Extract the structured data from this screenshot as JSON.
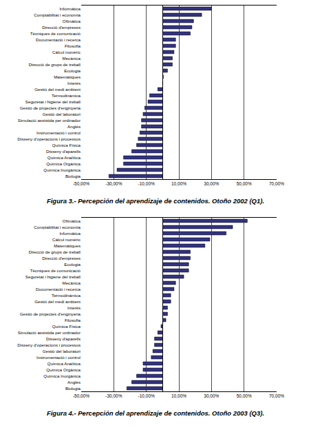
{
  "chart_data": [
    {
      "type": "bar",
      "orientation": "horizontal",
      "title": "Figura 3.- Percepción del aprendizaje de contenidos. Otoño 2002 (Q1).",
      "categories": [
        "Informàtica",
        "Comptabilitat i economia",
        "Ofimàtica",
        "Direcció d'empreses",
        "Tècniques de comunicació",
        "Documentació i recerca",
        "Filosofia",
        "Càlcul numèric",
        "Mecànica",
        "Direcció de grups de treball",
        "Ecologia",
        "Matemàtiques",
        "Interès",
        "Gestió del medi ambient",
        "Termodinàmica",
        "Seguretat i higiene del treball",
        "Gestió de projectes d'enginyeria",
        "Gestió del laboratori",
        "Simulació assistida per ordinador",
        "Anglès",
        "Instrumentació i control",
        "Disseny d'operacions i processos",
        "Química Física",
        "Disseny d'aparells",
        "Química Analítica",
        "Química Orgànica",
        "Química Inorgànica",
        "Biologia"
      ],
      "values": [
        30,
        24,
        19,
        18,
        17,
        8,
        8,
        7,
        6,
        6,
        3,
        0.5,
        0,
        -3,
        -8,
        -9,
        -11,
        -12,
        -13,
        -13,
        -14,
        -15,
        -16,
        -19,
        -24,
        -24,
        -28,
        -33
      ],
      "color": "#333380",
      "xlim": [
        -50,
        70
      ],
      "xticks": [
        {
          "value": -50,
          "label": "-50,00%"
        },
        {
          "value": -30,
          "label": "-30,00%"
        },
        {
          "value": -10,
          "label": "-10,00%"
        },
        {
          "value": 10,
          "label": "10,00%"
        },
        {
          "value": 30,
          "label": "30,00%"
        },
        {
          "value": 50,
          "label": "50,00%"
        },
        {
          "value": 70,
          "label": "70,00%"
        }
      ],
      "grid": true
    },
    {
      "type": "bar",
      "orientation": "horizontal",
      "title": "Figura 4.- Percepción del aprendizaje de contenidos. Otoño 2003 (Q3).",
      "categories": [
        "Ofimàtica",
        "Comptabilitat i economia",
        "Informàtica",
        "Càlcul numèric",
        "Matemàtiques",
        "Direcció de grups de treball",
        "Direcció d'empreses",
        "Ecologia",
        "Tècniques de comunicació",
        "Seguretat i higiene del treball",
        "Mecànica",
        "Documentació i recerca",
        "Termodinàmica",
        "Gestió del medi ambient",
        "Interès",
        "Gestió de projectes d'enginyeria",
        "Filosofia",
        "Química Física",
        "Simulació assistida per ordinador",
        "Disseny d'aparells",
        "Disseny d'operacions i processos",
        "Gestió del laboratori",
        "Instrumentació i control",
        "Química Analítica",
        "Química Orgànica",
        "Química Inorgànica",
        "Anglès",
        "Biologia"
      ],
      "values": [
        52,
        43,
        39,
        29,
        26,
        17,
        17,
        16,
        16,
        13,
        8,
        7,
        5,
        5,
        3,
        3,
        2,
        -1,
        -3,
        -5,
        -5,
        -6,
        -7,
        -12,
        -12,
        -16,
        -19,
        -22
      ],
      "color": "#333380",
      "xlim": [
        -50,
        70
      ],
      "xticks": [
        {
          "value": -50,
          "label": "-50,00%"
        },
        {
          "value": -30,
          "label": "-30,00%"
        },
        {
          "value": -10,
          "label": "-10,00%"
        },
        {
          "value": 10,
          "label": "10,00%"
        },
        {
          "value": 30,
          "label": "30,00%"
        },
        {
          "value": 50,
          "label": "50,00%"
        },
        {
          "value": 70,
          "label": "70,00%"
        }
      ],
      "grid": true
    }
  ]
}
